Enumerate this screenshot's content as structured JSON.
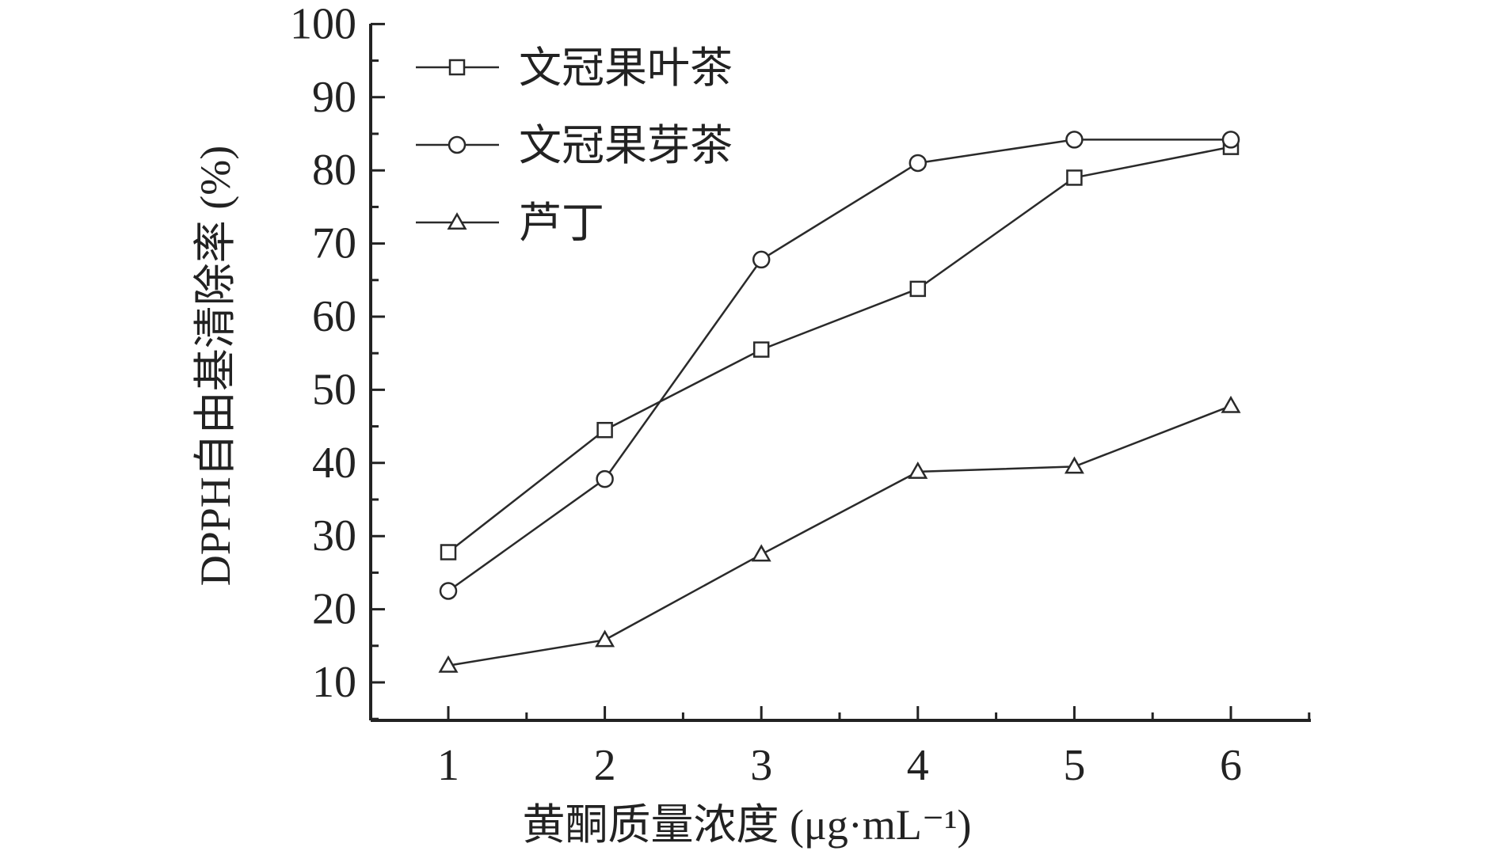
{
  "chart_data": {
    "type": "line",
    "x": [
      1,
      2,
      3,
      4,
      5,
      6
    ],
    "xlabel": "黄酮质量浓度 (μg·mL⁻¹)",
    "ylabel": "DPPH自由基清除率 (%)",
    "xlim": [
      0.5,
      6.5
    ],
    "ylim": [
      5,
      100
    ],
    "yticks": [
      10,
      20,
      30,
      40,
      50,
      60,
      70,
      80,
      90,
      100
    ],
    "xticks": [
      1,
      2,
      3,
      4,
      5,
      6
    ],
    "grid": false,
    "legend_position": "top-left",
    "series": [
      {
        "name": "文冠果叶茶",
        "marker": "square",
        "values": [
          27.8,
          44.5,
          55.5,
          63.8,
          79.0,
          83.2
        ]
      },
      {
        "name": "文冠果芽茶",
        "marker": "circle",
        "values": [
          22.5,
          37.8,
          67.8,
          81.0,
          84.2,
          84.2
        ]
      },
      {
        "name": "芦丁",
        "marker": "triangle",
        "values": [
          12.3,
          15.8,
          27.5,
          38.8,
          39.5,
          47.8
        ]
      }
    ],
    "colors": {
      "line": "#2a2a2a",
      "axis": "#222222"
    }
  }
}
